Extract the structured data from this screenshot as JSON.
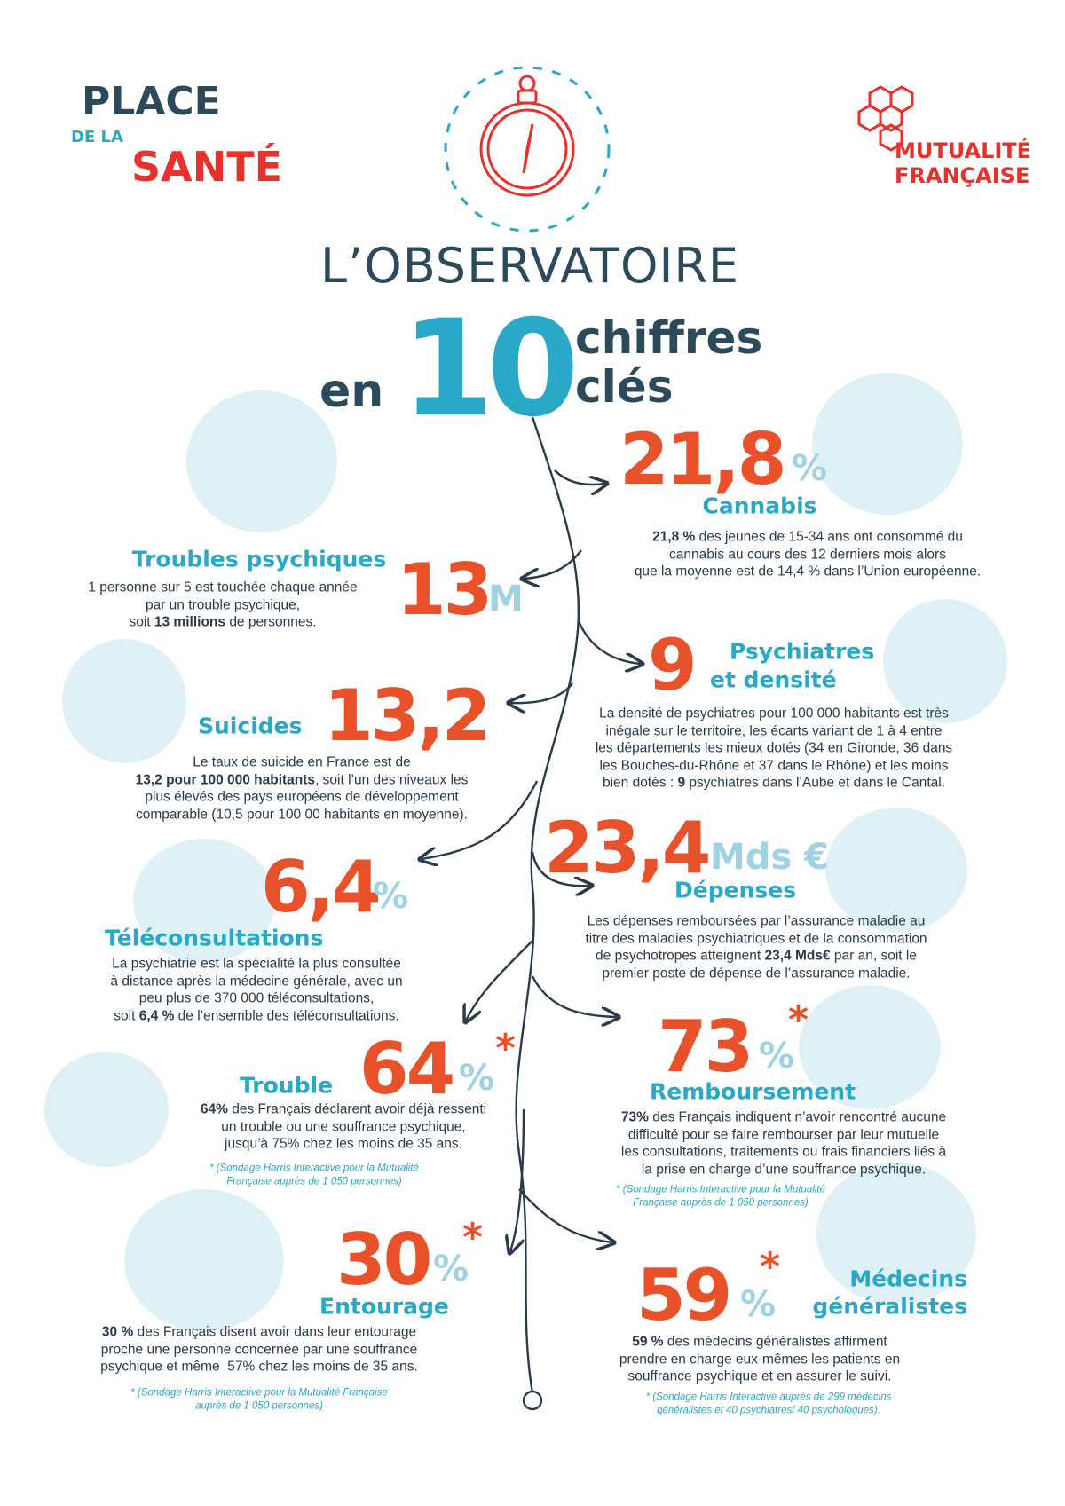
{
  "header": {
    "logo_left": [
      "PLACE",
      "DE LA",
      "SANTÉ"
    ],
    "logo_right": [
      "MUTUALITÉ",
      "FRANÇAISE"
    ],
    "title": "L’OBSERVATOIRE",
    "subtitle": {
      "prefix": "en",
      "number": "10",
      "suffix": [
        "chiffres",
        "clés"
      ]
    }
  },
  "items": [
    {
      "number": "21,8",
      "unit": "%",
      "label": [
        "Cannabis"
      ],
      "description": [
        [
          {
            "text": "21,8 %",
            "bold": true
          },
          {
            "text": " des jeunes de 15-34 ans ont consommé du",
            "bold": false
          }
        ],
        [
          {
            "text": "cannabis au cours des 12 derniers mois alors",
            "bold": false
          }
        ],
        [
          {
            "text": "que la moyenne est de 14,4 % dans l’Union européenne.",
            "bold": false
          }
        ]
      ]
    },
    {
      "number": "13",
      "unit": "M",
      "label": [
        "Troubles psychiques"
      ],
      "description": [
        [
          {
            "text": "1 personne sur 5 est touchée chaque année",
            "bold": false
          }
        ],
        [
          {
            "text": "par un trouble psychique,",
            "bold": false
          }
        ],
        [
          {
            "text": "soit ",
            "bold": false
          },
          {
            "text": "13 millions",
            "bold": true
          },
          {
            "text": " de personnes.",
            "bold": false
          }
        ]
      ]
    },
    {
      "number": "9",
      "label": [
        "Psychiatres",
        "et densité"
      ],
      "description": [
        [
          {
            "text": "La densité de psychiatres pour 100 000 habitants est très",
            "bold": false
          }
        ],
        [
          {
            "text": "inégale sur le territoire, les écarts variant de 1 à 4 entre",
            "bold": false
          }
        ],
        [
          {
            "text": "les départements les mieux dotés (34 en Gironde, 36 dans",
            "bold": false
          }
        ],
        [
          {
            "text": "les Bouches-du-Rhône et 37 dans le Rhône) et les moins",
            "bold": false
          }
        ],
        [
          {
            "text": "bien dotés : ",
            "bold": false
          },
          {
            "text": "9",
            "bold": true
          },
          {
            "text": " psychiatres dans l’Aube et dans le Cantal.",
            "bold": false
          }
        ]
      ]
    },
    {
      "number": "13,2",
      "label": [
        "Suicides"
      ],
      "description": [
        [
          {
            "text": "Le taux de suicide en France est de",
            "bold": false
          }
        ],
        [
          {
            "text": "13,2 pour 100 000 habitants",
            "bold": true
          },
          {
            "text": ", soit l’un des niveaux les",
            "bold": false
          }
        ],
        [
          {
            "text": "plus élevés des pays européens de développement",
            "bold": false
          }
        ],
        [
          {
            "text": "comparable (10,5 pour 100 00 habitants en moyenne).",
            "bold": false
          }
        ]
      ]
    },
    {
      "number": "23,4",
      "unit": "Mds €",
      "label": [
        "Dépenses"
      ],
      "description": [
        [
          {
            "text": "Les dépenses remboursées par l’assurance maladie au",
            "bold": false
          }
        ],
        [
          {
            "text": "titre des maladies psychiatriques et de la consommation",
            "bold": false
          }
        ],
        [
          {
            "text": "de psychotropes atteignent ",
            "bold": false
          },
          {
            "text": "23,4 Mds€",
            "bold": true
          },
          {
            "text": " par an, soit le",
            "bold": false
          }
        ],
        [
          {
            "text": "premier poste de dépense de l’assurance maladie.",
            "bold": false
          }
        ]
      ]
    },
    {
      "number": "6,4",
      "unit": "%",
      "label": [
        "Téléconsultations"
      ],
      "description": [
        [
          {
            "text": "La psychiatrie est la spécialité la plus consultée",
            "bold": false
          }
        ],
        [
          {
            "text": "à distance après la médecine générale, avec un",
            "bold": false
          }
        ],
        [
          {
            "text": "peu plus de 370 000 téléconsultations,",
            "bold": false
          }
        ],
        [
          {
            "text": "soit ",
            "bold": false
          },
          {
            "text": "6,4 %",
            "bold": true
          },
          {
            "text": " de l’ensemble des téléconsultations.",
            "bold": false
          }
        ]
      ]
    },
    {
      "number": "73",
      "unit": "%",
      "asterisk": "*",
      "label": [
        "Remboursement"
      ],
      "description": [
        [
          {
            "text": "73%",
            "bold": true
          },
          {
            "text": " des Français indiquent n’avoir rencontré aucune",
            "bold": false
          }
        ],
        [
          {
            "text": "difficulté pour se faire rembourser par leur mutuelle",
            "bold": false
          }
        ],
        [
          {
            "text": "les consultations, traitements ou frais financiers liés à",
            "bold": false
          }
        ],
        [
          {
            "text": "la prise en charge d’une souffrance psychique.",
            "bold": false
          }
        ]
      ],
      "note": [
        "* (Sondage Harris Interactive pour la Mutualité",
        "Française auprès de 1 050 personnes)"
      ]
    },
    {
      "number": "64",
      "unit": "%",
      "asterisk": "*",
      "label": [
        "Trouble"
      ],
      "description": [
        [
          {
            "text": "64%",
            "bold": true
          },
          {
            "text": " des Français déclarent avoir déjà ressenti",
            "bold": false
          }
        ],
        [
          {
            "text": "un trouble ou une souffrance psychique,",
            "bold": false
          }
        ],
        [
          {
            "text": "jusqu’à 75% chez les moins de 35 ans.",
            "bold": false
          }
        ]
      ],
      "note": [
        "* (Sondage Harris Interactive pour la Mutualité",
        "Française auprès de 1 050 personnes)"
      ]
    },
    {
      "number": "30",
      "unit": "%",
      "asterisk": "*",
      "label": [
        "Entourage"
      ],
      "description": [
        [
          {
            "text": "30 %",
            "bold": true
          },
          {
            "text": " des Français disent avoir dans leur entourage",
            "bold": false
          }
        ],
        [
          {
            "text": "proche une personne concernée par une souffrance",
            "bold": false
          }
        ],
        [
          {
            "text": "psychique et même  57% chez les moins de 35 ans.",
            "bold": false
          }
        ]
      ],
      "note": [
        "* (Sondage Harris Interactive pour la Mutualité Française",
        "auprès de 1 050 personnes)"
      ]
    },
    {
      "number": "59",
      "unit": "%",
      "asterisk": "*",
      "label": [
        "Médecins",
        "généralistes"
      ],
      "description": [
        [
          {
            "text": "59 %",
            "bold": true
          },
          {
            "text": " des médecins généralistes affirment",
            "bold": false
          }
        ],
        [
          {
            "text": "prendre en charge eux-mêmes les patients en",
            "bold": false
          }
        ],
        [
          {
            "text": "souffrance psychique et en assurer le suivi.",
            "bold": false
          }
        ]
      ],
      "note": [
        "* (Sondage Harris Interactive auprès de 299 médecins",
        "généralistes et 40 psychiatres/ 40 psychologues)."
      ]
    }
  ]
}
